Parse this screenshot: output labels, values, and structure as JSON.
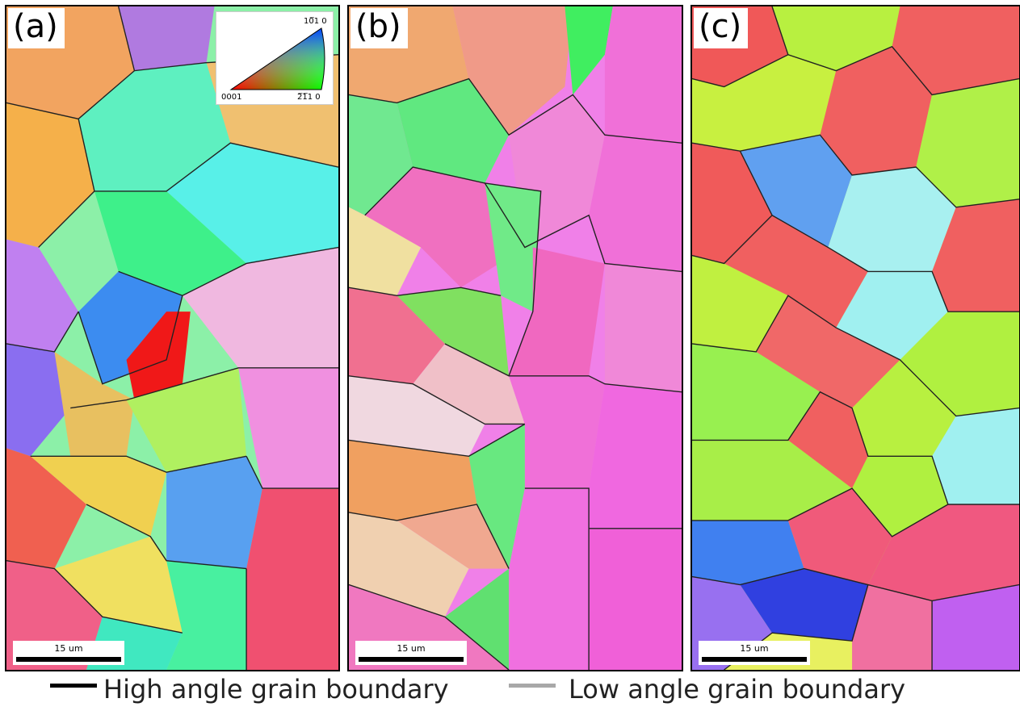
{
  "panels": [
    {
      "id": "a",
      "label": "(a)",
      "scale_text": "15 um"
    },
    {
      "id": "b",
      "label": "(b)",
      "scale_text": "15 um"
    },
    {
      "id": "c",
      "label": "(c)",
      "scale_text": "15 um"
    }
  ],
  "ipf_key": {
    "corner_top": "10̅1 0",
    "corner_left": "0001",
    "corner_right": "2̅1̅1 0"
  },
  "legend": {
    "high_angle": {
      "text": "High angle grain boundary",
      "color": "#000000"
    },
    "low_angle": {
      "text": "Low angle grain boundary",
      "color": "#a8a8a8"
    }
  }
}
